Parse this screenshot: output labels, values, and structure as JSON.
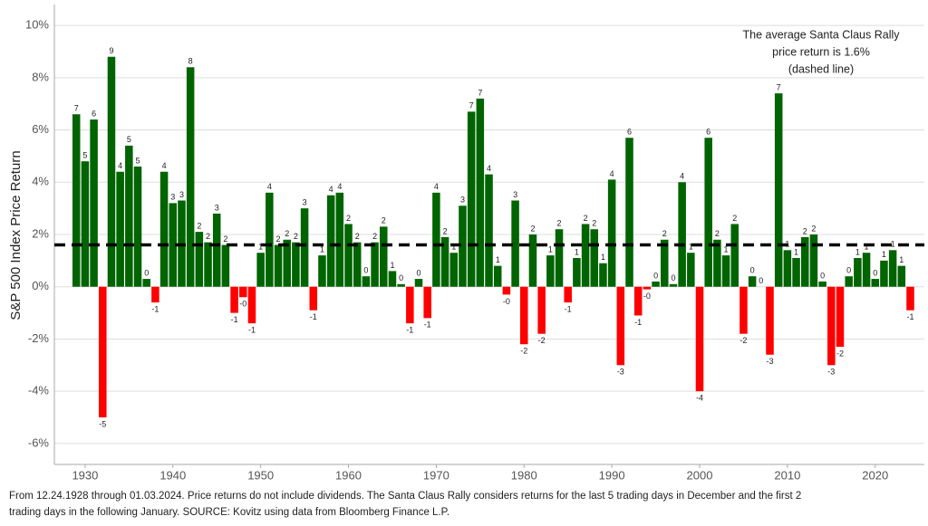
{
  "chart_data": {
    "type": "bar",
    "y_label": "S&P 500 Index Price Return",
    "annotation": [
      "The average Santa Claus Rally",
      "price return is 1.6%",
      "(dashed line)"
    ],
    "footnote": [
      "From 12.24.1928 through 01.03.2024. Price returns do not include dividends. The Santa Claus Rally considers returns for the last 5 trading days in December and the first 2",
      "trading days in the following January. SOURCE: Kovitz using data from Bloomberg Finance L.P."
    ],
    "x": [
      1929,
      1930,
      1931,
      1932,
      1933,
      1934,
      1935,
      1936,
      1937,
      1938,
      1939,
      1940,
      1941,
      1942,
      1943,
      1944,
      1945,
      1946,
      1947,
      1948,
      1949,
      1950,
      1951,
      1952,
      1953,
      1954,
      1955,
      1956,
      1957,
      1958,
      1959,
      1960,
      1961,
      1962,
      1963,
      1964,
      1965,
      1966,
      1967,
      1968,
      1969,
      1970,
      1971,
      1972,
      1973,
      1974,
      1975,
      1976,
      1977,
      1978,
      1979,
      1980,
      1981,
      1982,
      1983,
      1984,
      1985,
      1986,
      1987,
      1988,
      1989,
      1990,
      1991,
      1992,
      1993,
      1994,
      1995,
      1996,
      1997,
      1998,
      1999,
      2000,
      2001,
      2002,
      2003,
      2004,
      2005,
      2006,
      2007,
      2008,
      2009,
      2010,
      2011,
      2012,
      2013,
      2014,
      2015,
      2016,
      2017,
      2018,
      2019,
      2020,
      2021,
      2022,
      2023,
      2024
    ],
    "values": [
      6.6,
      4.8,
      6.4,
      -5.0,
      8.8,
      4.4,
      5.4,
      4.6,
      0.3,
      -0.6,
      4.4,
      3.2,
      3.3,
      8.4,
      2.1,
      1.7,
      2.8,
      1.6,
      -1.0,
      -0.4,
      -1.4,
      1.3,
      3.6,
      1.6,
      1.8,
      1.7,
      3.0,
      -0.9,
      1.2,
      3.5,
      3.6,
      2.4,
      1.7,
      0.4,
      1.7,
      2.3,
      0.6,
      0.1,
      -1.4,
      0.3,
      -1.2,
      3.6,
      1.9,
      1.3,
      3.1,
      6.7,
      7.2,
      4.3,
      0.8,
      -0.3,
      3.3,
      -2.2,
      2.0,
      -1.8,
      1.2,
      2.2,
      -0.6,
      1.1,
      2.4,
      2.2,
      0.9,
      4.1,
      -3.0,
      5.7,
      -1.1,
      -0.1,
      0.2,
      1.8,
      0.1,
      4.0,
      1.3,
      -4.0,
      5.7,
      1.8,
      1.2,
      2.4,
      -1.8,
      0.4,
      0,
      -2.6,
      7.4,
      1.4,
      1.1,
      1.9,
      2.0,
      0.2,
      -3.0,
      -2.3,
      0.4,
      1.1,
      1.3,
      0.3,
      1.0,
      1.4,
      0.8,
      -0.9
    ],
    "value_labels": [
      "7",
      "5",
      "6",
      "-5",
      "9",
      "4",
      "5",
      "5",
      "0",
      "-1",
      "4",
      "3",
      "3",
      "8",
      "2",
      "2",
      "3",
      "2",
      "-1",
      "-0",
      "-1",
      "1",
      "4",
      "2",
      "2",
      "2",
      "3",
      "-1",
      "1",
      "4",
      "4",
      "2",
      "2",
      "0",
      "2",
      "2",
      "1",
      "0",
      "-1",
      "0",
      "-1",
      "4",
      "2",
      "1",
      "3",
      "7",
      "7",
      "4",
      "1",
      "-0",
      "3",
      "-2",
      "2",
      "-2",
      "1",
      "2",
      "-1",
      "1",
      "2",
      "2",
      "1",
      "4",
      "-3",
      "6",
      "-1",
      "-0",
      "0",
      "2",
      "0",
      "4",
      "1",
      "-4",
      "6",
      "2",
      "1",
      "2",
      "-2",
      "0",
      "0",
      "-3",
      "7",
      "1",
      "1",
      "2",
      "2",
      "0",
      "-3",
      "-2",
      "0",
      "1",
      "1",
      "0",
      "1",
      "1",
      "1",
      "-1"
    ],
    "positive_color": "#006400",
    "negative_color": "#ff0000",
    "average": 1.6,
    "xlim": [
      1926.5,
      2025.6
    ],
    "xticks": [
      1930,
      1940,
      1950,
      1960,
      1970,
      1980,
      1990,
      2000,
      2010,
      2020
    ],
    "ylim": [
      -6.8,
      10.8
    ],
    "yticks": [
      {
        "value": -6,
        "label": "-6%"
      },
      {
        "value": -4,
        "label": "-4%"
      },
      {
        "value": -2,
        "label": "-2%"
      },
      {
        "value": 0,
        "label": "0%"
      },
      {
        "value": 2,
        "label": "2%"
      },
      {
        "value": 4,
        "label": "4%"
      },
      {
        "value": 6,
        "label": "6%"
      },
      {
        "value": 8,
        "label": "8%"
      },
      {
        "value": 10,
        "label": "10%"
      }
    ],
    "grid": true
  }
}
